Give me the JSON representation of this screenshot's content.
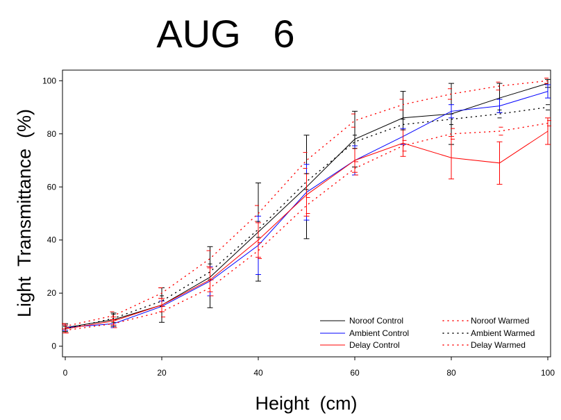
{
  "chart_data": {
    "type": "line",
    "title": "AUG   6",
    "xlabel": "Height  (cm)",
    "ylabel": "Light  Transmittance  (%)",
    "xlim": [
      0,
      100
    ],
    "ylim": [
      -4,
      104
    ],
    "x_ticks": [
      0,
      20,
      40,
      60,
      80,
      100
    ],
    "y_ticks": [
      0,
      20,
      40,
      60,
      80,
      100
    ],
    "x": [
      0,
      10,
      20,
      30,
      40,
      50,
      60,
      70,
      80,
      90,
      100
    ],
    "legend_position": "bottom-right",
    "series": [
      {
        "name": "Noroof Control",
        "style": "solid",
        "color": "#000000",
        "values": [
          7,
          10,
          15.5,
          26,
          43,
          60,
          78,
          86,
          87.5,
          93.5,
          99
        ],
        "errors": [
          1.5,
          2.5,
          6.5,
          11.5,
          18.5,
          19.5,
          10.5,
          10,
          11.5,
          5.5,
          1.5
        ]
      },
      {
        "name": "Ambient Control",
        "style": "solid",
        "color": "#0000ff",
        "values": [
          7,
          8.5,
          15,
          24.5,
          38,
          58,
          70,
          79,
          88.5,
          90.5,
          96
        ],
        "errors": [
          1,
          1.5,
          2,
          5.5,
          11,
          10.5,
          5.5,
          3,
          2.5,
          2.5,
          2.5
        ]
      },
      {
        "name": "Delay Control",
        "style": "solid",
        "color": "#ff0000",
        "values": [
          6.5,
          9.5,
          15.5,
          25,
          40,
          57,
          70,
          76.5,
          71,
          69,
          81
        ],
        "errors": [
          1.5,
          1.5,
          2.5,
          4.5,
          6.5,
          8,
          4.5,
          5,
          8,
          8,
          5
        ]
      },
      {
        "name": "Noroof Warmed",
        "style": "dotted",
        "color": "#ff0000",
        "values": [
          7.5,
          11.5,
          20,
          33,
          50,
          70,
          85,
          91,
          95,
          98,
          100
        ],
        "errors": [
          1,
          1.5,
          2,
          3,
          3,
          3,
          2.5,
          2,
          2,
          1.5,
          1
        ]
      },
      {
        "name": "Ambient Warmed",
        "style": "dotted",
        "color": "#000000",
        "values": [
          6.5,
          10.5,
          17,
          28,
          44,
          62,
          77,
          83.5,
          85.5,
          87.5,
          90
        ],
        "errors": [
          1,
          1.5,
          2,
          3,
          3,
          3,
          2.5,
          2,
          2,
          1.5,
          1
        ]
      },
      {
        "name": "Delay Warmed",
        "style": "dotted",
        "color": "#ff0000",
        "values": [
          6,
          8.5,
          13,
          22,
          36,
          53,
          67,
          75.5,
          80,
          81,
          84
        ],
        "errors": [
          1,
          1.5,
          2,
          3,
          3,
          3,
          2.5,
          2,
          2,
          1.5,
          1
        ]
      }
    ]
  }
}
